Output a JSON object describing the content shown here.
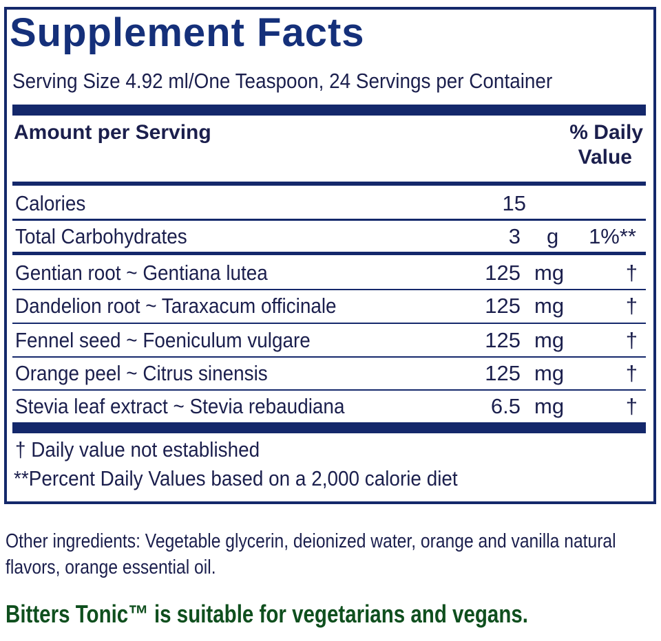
{
  "label": {
    "title": "Supplement Facts",
    "serving": "Serving Size 4.92 ml/One Teaspoon, 24 Servings per Container",
    "header_left": "Amount per Serving",
    "header_right_1": "% Daily",
    "header_right_2": "Value",
    "rows": [
      {
        "name": "Calories",
        "amount": "15",
        "unit": "",
        "dv": ""
      },
      {
        "name": "Total Carbohydrates",
        "amount": "3",
        "unit": "g",
        "dv": "1%**"
      },
      {
        "name": "Gentian root ~ Gentiana lutea",
        "amount": "125",
        "unit": "mg",
        "dv": "†"
      },
      {
        "name": "Dandelion root ~ Taraxacum officinale",
        "amount": "125",
        "unit": "mg",
        "dv": "†"
      },
      {
        "name": "Fennel seed ~ Foeniculum vulgare",
        "amount": "125",
        "unit": "mg",
        "dv": "†"
      },
      {
        "name": "Orange peel ~ Citrus sinensis",
        "amount": "125",
        "unit": "mg",
        "dv": "†"
      },
      {
        "name": "Stevia leaf extract ~ Stevia rebaudiana",
        "amount": "6.5",
        "unit": "mg",
        "dv": "†"
      }
    ],
    "footnote_1": "†  Daily value not established",
    "footnote_2": "**Percent Daily Values based on a 2,000 calorie diet"
  },
  "other_ingredients": "Other ingredients: Vegetable glycerin, deionized water, orange and vanilla natural flavors, orange essential oil.",
  "suitability": "Bitters Tonic™ is suitable for vegetarians and vegans.",
  "colors": {
    "navy": "#14286b",
    "title": "#15307a",
    "green": "#0f4f1e"
  }
}
